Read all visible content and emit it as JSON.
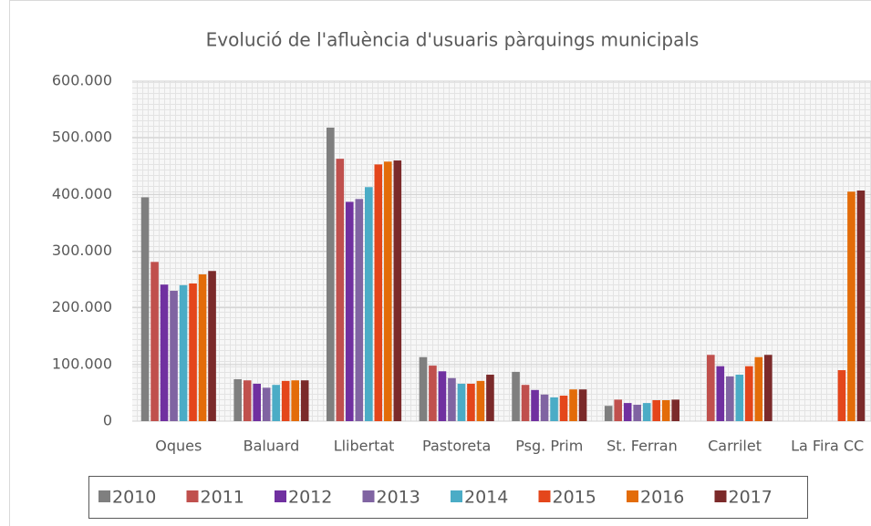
{
  "chart_data": {
    "type": "bar",
    "title": "Evolució de l'afluència d'usuaris pàrquings municipals",
    "categories": [
      "Oques",
      "Baluard",
      "Llibertat",
      "Pastoreta",
      "Psg. Prim",
      "St. Ferran",
      "Carrilet",
      "La Fira CC"
    ],
    "series": [
      {
        "name": "2010",
        "color": "#7f7f7f",
        "values": [
          395000,
          74000,
          518000,
          113000,
          87000,
          27000,
          null,
          null
        ]
      },
      {
        "name": "2011",
        "color": "#c0504d",
        "values": [
          281000,
          72000,
          463000,
          98000,
          64000,
          38000,
          117000,
          null
        ]
      },
      {
        "name": "2012",
        "color": "#7030a0",
        "values": [
          241000,
          66000,
          387000,
          88000,
          55000,
          32000,
          97000,
          null
        ]
      },
      {
        "name": "2013",
        "color": "#8064a2",
        "values": [
          230000,
          59000,
          392000,
          76000,
          47000,
          29000,
          79000,
          null
        ]
      },
      {
        "name": "2014",
        "color": "#4bacc6",
        "values": [
          240000,
          64000,
          413000,
          66000,
          42000,
          32000,
          82000,
          null
        ]
      },
      {
        "name": "2015",
        "color": "#e4461b",
        "values": [
          243000,
          71000,
          453000,
          66000,
          45000,
          37000,
          97000,
          90000
        ]
      },
      {
        "name": "2016",
        "color": "#e36c09",
        "values": [
          259000,
          72000,
          458000,
          71000,
          56000,
          37000,
          113000,
          405000
        ]
      },
      {
        "name": "2017",
        "color": "#7b2a2a",
        "values": [
          265000,
          72000,
          460000,
          82000,
          56000,
          38000,
          117000,
          407000
        ]
      }
    ],
    "ylim": [
      0,
      600000
    ],
    "yticks": [
      0,
      {
        "value": 100000,
        "label": "100.000"
      },
      {
        "value": 200000,
        "label": "200.000"
      },
      {
        "value": 300000,
        "label": "300.000"
      },
      {
        "value": 400000,
        "label": "400.000"
      },
      {
        "value": 500000,
        "label": "500.000"
      },
      {
        "value": 600000,
        "label": "600.000"
      }
    ],
    "grid": true,
    "legend": "bottom"
  }
}
